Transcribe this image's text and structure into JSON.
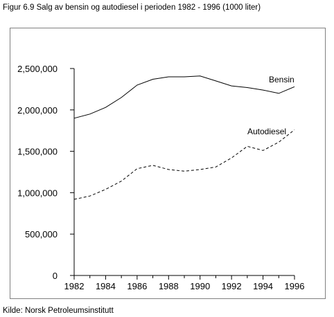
{
  "figure": {
    "title": "Figur 6.9  Salg av bensin og autodiesel i perioden 1982 - 1996 (1000 liter)",
    "source": "Kilde: Norsk Petroleumsinstitutt"
  },
  "chart_data": {
    "type": "line",
    "title": "Figur 6.9  Salg av bensin og autodiesel i perioden 1982 - 1996 (1000 liter)",
    "xlabel": "",
    "ylabel": "",
    "x": [
      1982,
      1983,
      1984,
      1985,
      1986,
      1987,
      1988,
      1989,
      1990,
      1991,
      1992,
      1993,
      1994,
      1995,
      1996
    ],
    "xlim": [
      1982,
      1996
    ],
    "ylim": [
      0,
      2500000
    ],
    "x_ticks": [
      1982,
      1984,
      1986,
      1988,
      1990,
      1992,
      1994,
      1996
    ],
    "x_tick_labels": [
      "1982",
      "1984",
      "1986",
      "1988",
      "1990",
      "1992",
      "1994",
      "1996"
    ],
    "y_ticks": [
      0,
      500000,
      1000000,
      1500000,
      2000000,
      2500000
    ],
    "y_tick_labels": [
      "0",
      "500,000",
      "1,000,000",
      "1,500,000",
      "2,000,000",
      "2,500,000"
    ],
    "grid": false,
    "legend": "labels placed at line ends",
    "series": [
      {
        "name": "Bensin",
        "style": "solid",
        "color": "#000000",
        "values": [
          1900000,
          1950000,
          2030000,
          2150000,
          2300000,
          2370000,
          2400000,
          2400000,
          2410000,
          2350000,
          2290000,
          2270000,
          2240000,
          2200000,
          2280000
        ]
      },
      {
        "name": "Autodiesel",
        "style": "dashed",
        "color": "#000000",
        "values": [
          920000,
          960000,
          1040000,
          1140000,
          1290000,
          1330000,
          1280000,
          1260000,
          1280000,
          1310000,
          1420000,
          1560000,
          1510000,
          1610000,
          1760000
        ]
      }
    ]
  }
}
